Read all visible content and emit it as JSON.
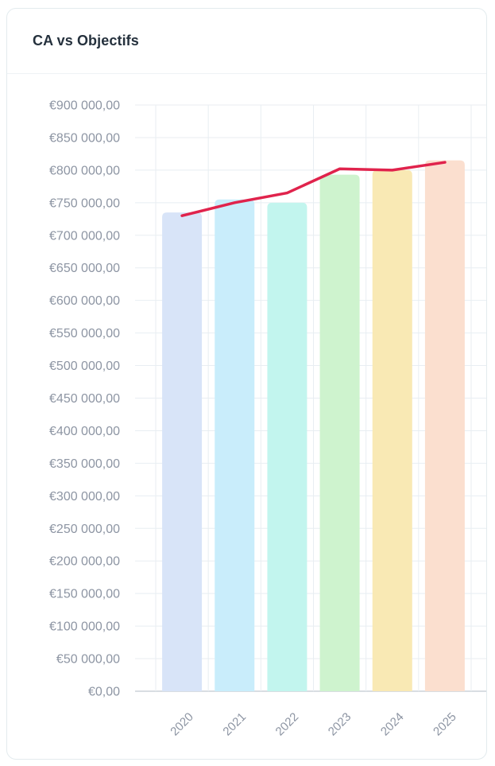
{
  "card": {
    "title": "CA vs Objectifs"
  },
  "chart_data": {
    "type": "bar",
    "subtype": "vertical-bars-with-line-overlay",
    "title": "CA vs Objectifs",
    "categories": [
      "2020",
      "2021",
      "2022",
      "2023",
      "2024",
      "2025"
    ],
    "series": [
      {
        "name": "CA",
        "type": "bar",
        "values": [
          735000,
          755000,
          750000,
          793000,
          800000,
          815000
        ],
        "bar_colors": [
          "#d8e4f8",
          "#c9edfb",
          "#c2f5ee",
          "#cef3ce",
          "#f9e9b4",
          "#fbdfcf"
        ]
      },
      {
        "name": "Objectifs",
        "type": "line",
        "values": [
          730000,
          750000,
          765000,
          802000,
          800000,
          812000
        ],
        "color": "#e0234c"
      }
    ],
    "xlabel": "",
    "ylabel": "",
    "ylim": [
      0,
      900000
    ],
    "ytick_step": 50000,
    "ytick_labels": [
      "€900 000,00",
      "€850 000,00",
      "€800 000,00",
      "€750 000,00",
      "€700 000,00",
      "€650 000,00",
      "€600 000,00",
      "€550 000,00",
      "€500 000,00",
      "€450 000,00",
      "€400 000,00",
      "€350 000,00",
      "€300 000,00",
      "€250 000,00",
      "€200 000,00",
      "€150 000,00",
      "€100 000,00",
      "€50 000,00",
      "€0,00"
    ],
    "x_tick_rotation_deg": -45,
    "grid": "horizontal lines every 50000 + vertical lines at category boundaries",
    "legend_position": "none"
  },
  "style": {
    "title_color": "#25313d",
    "axis_label_color": "#8d95a3",
    "grid_color": "#e8eef2",
    "zero_line_color": "#ccd2d8",
    "card_border_color": "#e3ebee",
    "divider_color": "#eef2f5",
    "line_color": "#e0234c",
    "background": "#ffffff"
  }
}
